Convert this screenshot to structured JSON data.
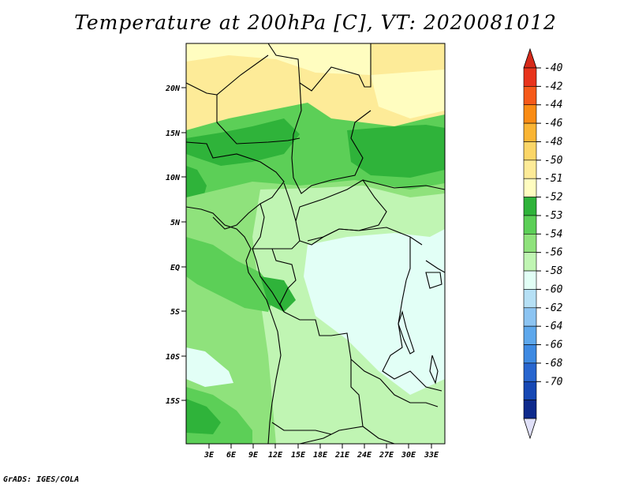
{
  "title": "Temperature at 200hPa [C], VT: 2020081012",
  "credit": "GrADS: IGES/COLA",
  "map": {
    "lat_labels": [
      "20N",
      "15N",
      "10N",
      "5N",
      "EQ",
      "5S",
      "10S",
      "15S"
    ],
    "lon_labels": [
      "3E",
      "6E",
      "9E",
      "12E",
      "15E",
      "18E",
      "21E",
      "24E",
      "27E",
      "30E",
      "33E"
    ],
    "border_color": "#000000"
  },
  "colorbar": {
    "levels": [
      "-40",
      "-42",
      "-44",
      "-46",
      "-48",
      "-50",
      "-51",
      "-52",
      "-53",
      "-54",
      "-56",
      "-58",
      "-60",
      "-62",
      "-64",
      "-66",
      "-68",
      "-70"
    ],
    "colors": [
      "#e8341c",
      "#f65a1a",
      "#fa8c14",
      "#fab534",
      "#fbd668",
      "#fdeb98",
      "#fffdc0",
      "#2fb33a",
      "#5ccf57",
      "#8fe27c",
      "#c0f5b3",
      "#e2fff6",
      "#b6e0f5",
      "#8cc4f2",
      "#5ea8ec",
      "#3e8ae2",
      "#2866cf",
      "#1648b4",
      "#0e2a8c"
    ],
    "top_triangle_color": "#d62a1a",
    "bottom_triangle_color": "#e0e0f8"
  }
}
